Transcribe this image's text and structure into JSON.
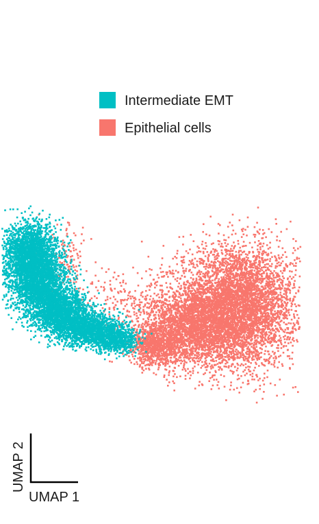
{
  "chart_data": {
    "type": "scatter",
    "title": "",
    "xlabel": "UMAP 1",
    "ylabel": "UMAP 2",
    "grid": false,
    "legend_position": "top-right",
    "xlim": [
      0,
      10
    ],
    "ylim": [
      0,
      6
    ],
    "series": [
      {
        "name": "Intermediate EMT",
        "color": "#00BFC4",
        "clusters": [
          {
            "cx": 0.9,
            "cy": 4.6,
            "sx": 0.45,
            "sy": 0.45,
            "n": 2200
          },
          {
            "cx": 1.2,
            "cy": 3.6,
            "sx": 0.5,
            "sy": 0.45,
            "n": 2000
          },
          {
            "cx": 1.9,
            "cy": 2.8,
            "sx": 0.5,
            "sy": 0.35,
            "n": 1700
          },
          {
            "cx": 2.9,
            "cy": 2.3,
            "sx": 0.5,
            "sy": 0.25,
            "n": 1300
          },
          {
            "cx": 3.8,
            "cy": 2.0,
            "sx": 0.35,
            "sy": 0.2,
            "n": 700
          }
        ]
      },
      {
        "name": "Epithelial cells",
        "color": "#F8766D",
        "clusters": [
          {
            "cx": 7.9,
            "cy": 3.0,
            "sx": 1.0,
            "sy": 0.9,
            "n": 5000
          },
          {
            "cx": 6.4,
            "cy": 2.4,
            "sx": 0.9,
            "sy": 0.55,
            "n": 2200
          },
          {
            "cx": 5.2,
            "cy": 1.8,
            "sx": 0.5,
            "sy": 0.3,
            "n": 900
          },
          {
            "cx": 4.0,
            "cy": 3.1,
            "sx": 0.9,
            "sy": 0.5,
            "n": 180
          },
          {
            "cx": 2.2,
            "cy": 4.3,
            "sx": 0.4,
            "sy": 0.6,
            "n": 120
          }
        ]
      }
    ]
  }
}
